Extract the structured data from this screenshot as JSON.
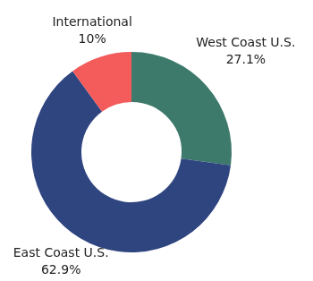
{
  "chart_data": {
    "type": "doughnut",
    "categories": [
      "West Coast U.S.",
      "East Coast U.S.",
      "International"
    ],
    "values": [
      27.1,
      62.9,
      10
    ],
    "value_labels": [
      "27.1%",
      "62.9%",
      "10%"
    ],
    "colors": [
      "#3e7a6c",
      "#2f4580",
      "#f45b5b"
    ],
    "data_labels": true
  }
}
